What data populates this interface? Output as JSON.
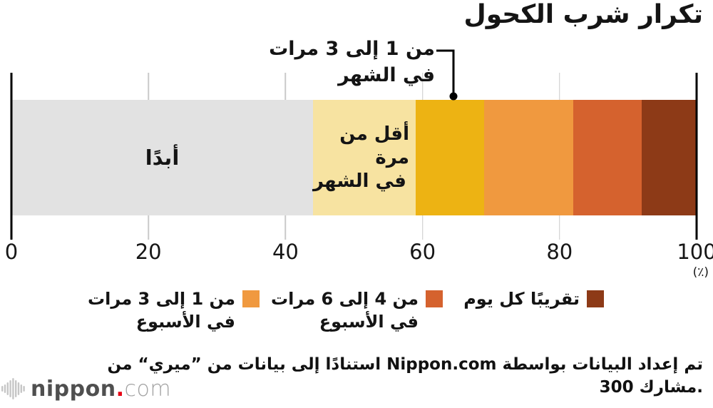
{
  "title": "تكرار شرب الكحول",
  "chart_data": {
    "type": "bar",
    "orientation": "horizontal",
    "stacked": true,
    "title": "تكرار شرب الكحول",
    "categories": [
      "أبدًا",
      "أقل من مرة في الشهر",
      "من 1 إلى 3 مرات في الشهر",
      "من 1 إلى 3 مرات في الأسبوع",
      "من 4 إلى 6 مرات في الأسبوع",
      "تقريبًا كل يوم"
    ],
    "values": [
      44,
      15,
      10,
      13,
      10,
      8
    ],
    "colors": [
      "#e2e2e2",
      "#f7e3a1",
      "#edb313",
      "#f0993f",
      "#d5622e",
      "#8d3a17"
    ],
    "xlim": [
      0,
      100
    ],
    "xticks": [
      0,
      20,
      40,
      60,
      80,
      100
    ],
    "xtick_labels": [
      "0",
      "20",
      "40",
      "60",
      "80",
      "100"
    ],
    "unit": "٪",
    "grid": true,
    "legend_position": "bottom",
    "source": "تم إعداد البيانات بواسطة Nippon.com استنادًا إلى بيانات من ”ميري“ من 300 مشارك."
  },
  "annotation": {
    "line1": "من 1 إلى 3 مرات",
    "line2": "في الشهر"
  },
  "bar_labels": {
    "never": "أبدًا",
    "less_line1": "أقل من مرة",
    "less_line2": "في الشهر"
  },
  "axis": {
    "unit_label": "(٪)"
  },
  "legend": [
    {
      "line1": "من 1 إلى 3 مرات",
      "line2": "في الأسبوع",
      "color": "#f0993f"
    },
    {
      "line1": "من 4 إلى 6 مرات",
      "line2": "في الأسبوع",
      "color": "#d5622e"
    },
    {
      "line1": "تقريبًا كل يوم",
      "line2": "",
      "color": "#8d3a17"
    }
  ],
  "footer": {
    "line1": "تم إعداد البيانات بواسطة Nippon.com استنادًا إلى بيانات من ”ميري“ من",
    "line2": "300 مشارك."
  },
  "logo": {
    "word": "nippon",
    "dot": ".",
    "tld": "com"
  },
  "colors": {
    "axis": "#000000",
    "gridline": "#c9c9c9",
    "logo_red": "#e60012"
  }
}
